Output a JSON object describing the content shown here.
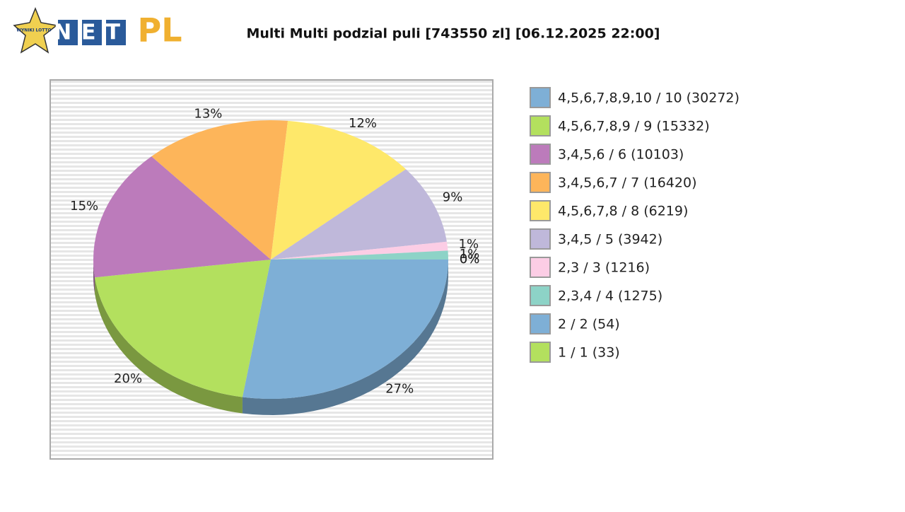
{
  "logo": {
    "left": "NET",
    "right": "PL",
    "badge": "WYNIKI LOTTO"
  },
  "chart_data": {
    "type": "pie",
    "title": "Multi Multi podzial puli [743550 zl] [06.12.2025 22:00]",
    "categories": [
      "4,5,6,7,8,9,10 / 10 (30272)",
      "4,5,6,7,8,9 / 9 (15332)",
      "3,4,5,6 / 6 (10103)",
      "3,4,5,6,7 / 7 (16420)",
      "4,5,6,7,8 / 8 (6219)",
      "3,4,5 / 5 (3942)",
      "2,3 / 3 (1216)",
      "2,3,4 / 4 (1275)",
      "2 / 2 (54)",
      "1 / 1 (33)"
    ],
    "values": [
      27,
      20,
      15,
      13,
      12,
      9,
      1,
      1,
      0,
      0
    ],
    "value_labels": [
      "27%",
      "20%",
      "15%",
      "13%",
      "12%",
      "9%",
      "1%",
      "1%",
      "0%",
      "0%"
    ],
    "colors": [
      "#7eafd6",
      "#b3e05e",
      "#bc7bbb",
      "#fdb55a",
      "#fee86a",
      "#bfb8da",
      "#fccde5",
      "#8dd3c7",
      "#7eafd6",
      "#b3e05e"
    ]
  }
}
